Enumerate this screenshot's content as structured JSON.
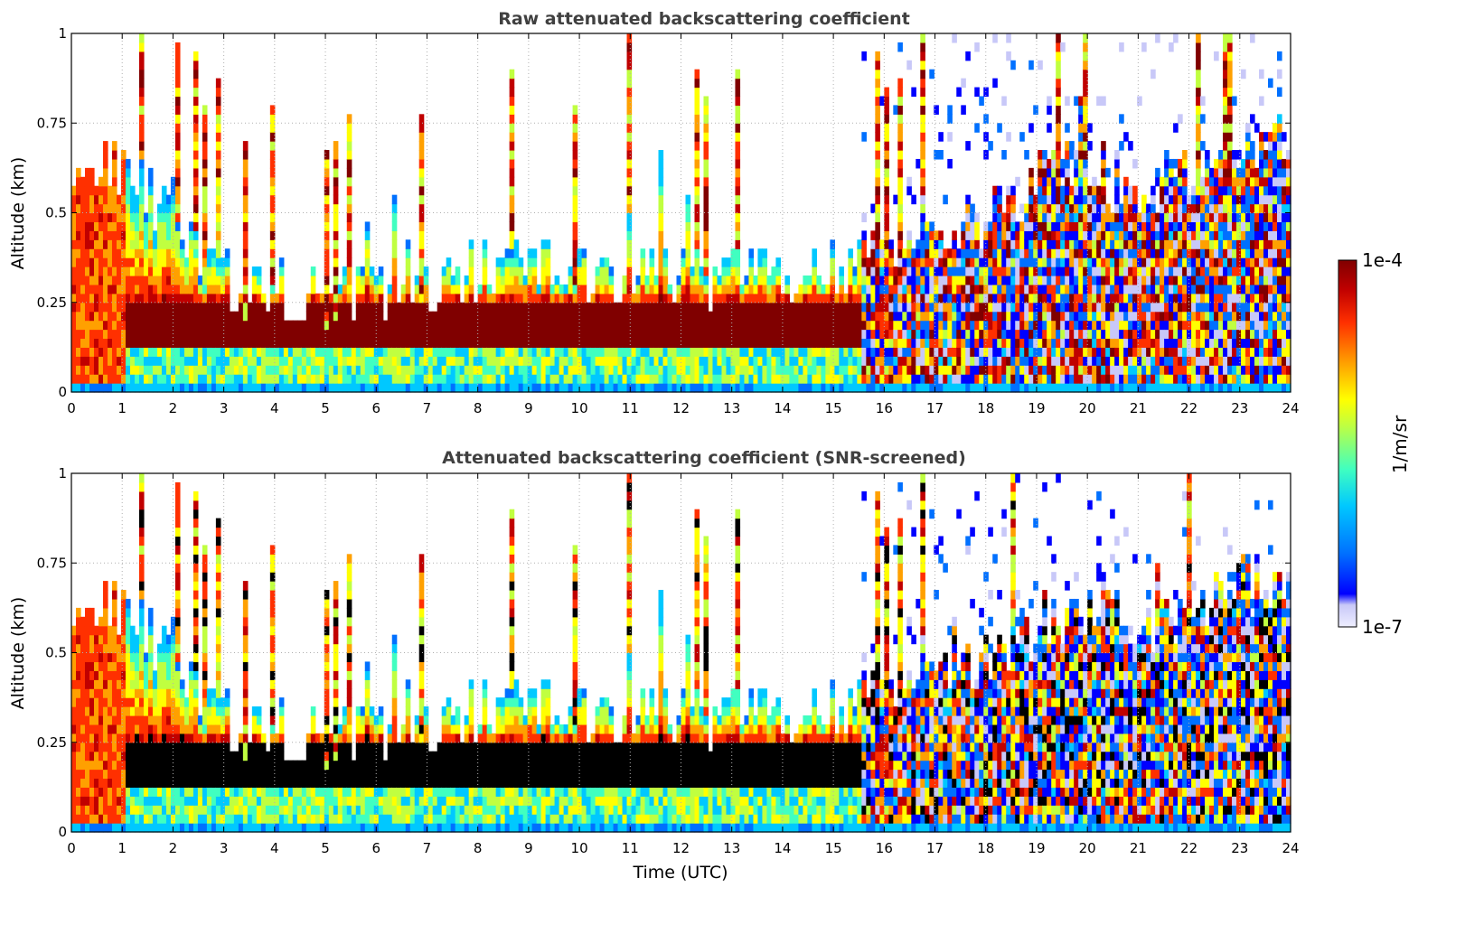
{
  "chart_data": [
    {
      "type": "heatmap",
      "title": "Raw attenuated backscattering coefficient",
      "xlabel": "",
      "ylabel": "Altitude (km)",
      "xlim": [
        0,
        24
      ],
      "ylim": [
        0,
        1
      ],
      "x_ticks": [
        "0",
        "1",
        "2",
        "3",
        "4",
        "5",
        "6",
        "7",
        "8",
        "9",
        "10",
        "11",
        "12",
        "13",
        "14",
        "15",
        "16",
        "17",
        "18",
        "19",
        "20",
        "21",
        "22",
        "23",
        "24"
      ],
      "y_ticks": [
        "0",
        "0.25",
        "0.5",
        "0.75",
        "1"
      ],
      "grid": true,
      "screened": false,
      "layer_top_km": [
        0.62,
        0.62,
        0.55,
        0.45,
        0.34,
        0.27,
        0.28,
        0.26,
        0.27,
        0.28,
        0.3,
        0.32,
        0.34,
        0.36,
        0.33,
        0.33,
        0.35,
        0.34,
        0.32,
        0.32,
        0.3,
        0.34,
        0.37,
        0.39,
        0.42,
        0.46,
        0.52,
        0.58,
        0.64,
        0.6,
        0.55,
        0.62,
        0.64,
        0.7,
        0.68
      ],
      "layer_band_km": [
        0.12,
        0.25
      ]
    },
    {
      "type": "heatmap",
      "title": "Attenuated backscattering coefficient (SNR-screened)",
      "xlabel": "Time (UTC)",
      "ylabel": "Altitude (km)",
      "xlim": [
        0,
        24
      ],
      "ylim": [
        0,
        1
      ],
      "x_ticks": [
        "0",
        "1",
        "2",
        "3",
        "4",
        "5",
        "6",
        "7",
        "8",
        "9",
        "10",
        "11",
        "12",
        "13",
        "14",
        "15",
        "16",
        "17",
        "18",
        "19",
        "20",
        "21",
        "22",
        "23",
        "24"
      ],
      "y_ticks": [
        "0",
        "0.25",
        "0.5",
        "0.75",
        "1"
      ],
      "grid": true,
      "screened": true
    }
  ],
  "colorbar": {
    "max_label": "1e-4",
    "min_label": "1e-7",
    "unit_label": "1/m/sr",
    "colormap": [
      "#eeeeff",
      "#c8c8f8",
      "#0000ff",
      "#0070ff",
      "#00c8ff",
      "#40ffc0",
      "#c0ff40",
      "#ffff00",
      "#ffa000",
      "#ff3000",
      "#c00000",
      "#800000"
    ]
  }
}
